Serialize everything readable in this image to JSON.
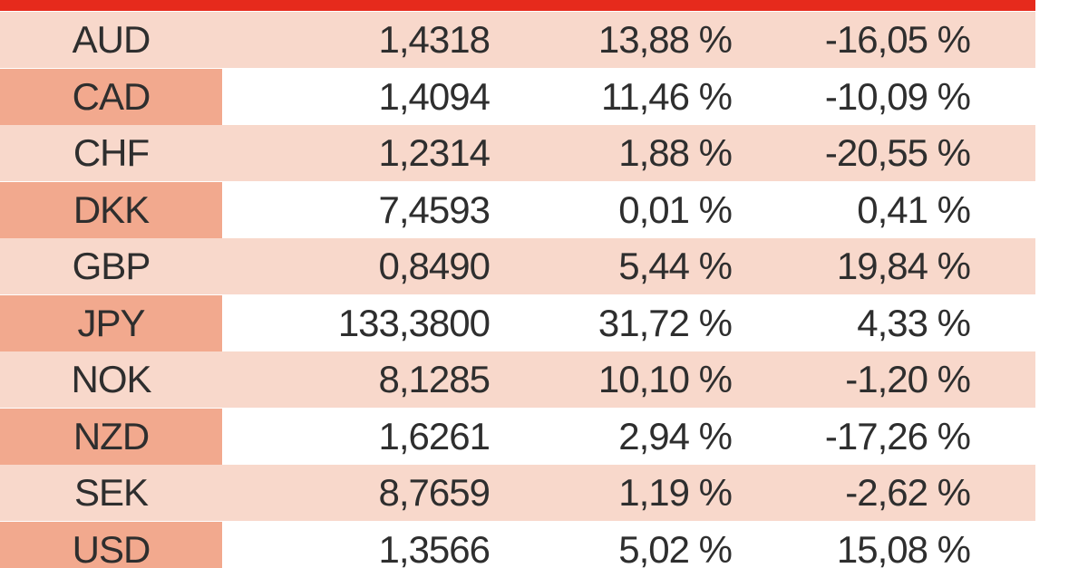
{
  "table": {
    "rows": [
      [
        "AUD",
        "1,4318",
        "13,88 %",
        "-16,05 %"
      ],
      [
        "CAD",
        "1,4094",
        "11,46 %",
        "-10,09 %"
      ],
      [
        "CHF",
        "1,2314",
        "1,88 %",
        "-20,55 %"
      ],
      [
        "DKK",
        "7,4593",
        "0,01 %",
        "0,41 %"
      ],
      [
        "GBP",
        "0,8490",
        "5,44 %",
        "19,84 %"
      ],
      [
        "JPY",
        "133,3800",
        "31,72 %",
        "4,33 %"
      ],
      [
        "NOK",
        "8,1285",
        "10,10 %",
        "-1,20 %"
      ],
      [
        "NZD",
        "1,6261",
        "2,94 %",
        "-17,26 %"
      ],
      [
        "SEK",
        "8,7659",
        "1,19 %",
        "-2,62 %"
      ],
      [
        "USD",
        "1,3566",
        "5,02 %",
        "15,08 %"
      ]
    ]
  }
}
